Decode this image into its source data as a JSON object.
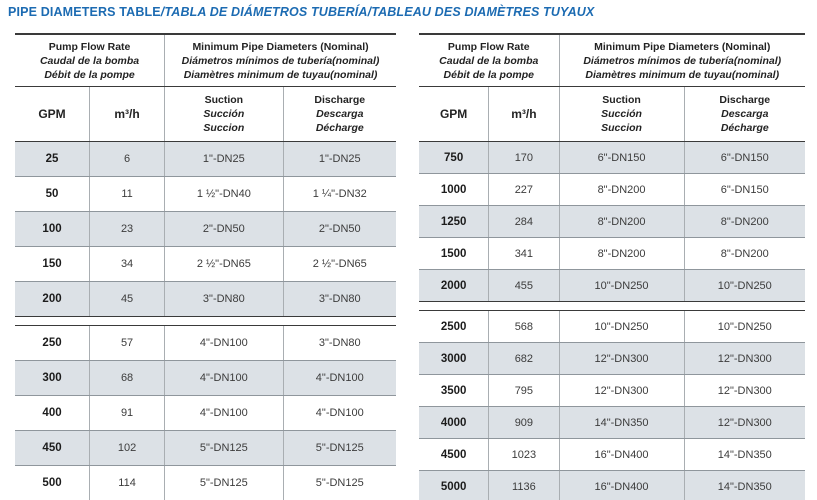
{
  "title": {
    "main": "PIPE DIAMETERS TABLE",
    "translations": "/TABLA DE DIÁMETROS TUBERÍA/TABLEAU DES DIAMÈTRES TUYAUX"
  },
  "colors": {
    "title_blue": "#1c6bb2",
    "row_shade": "#dce1e6",
    "border_dark": "#3a3a3a",
    "border_light": "#a9aeb2",
    "text_dark": "#232323"
  },
  "header": {
    "flow": [
      "Pump Flow Rate",
      "Caudal de la bomba",
      "Débit de la pompe"
    ],
    "diameters": [
      "Minimum Pipe Diameters (Nominal)",
      "Diámetros mínimos de tubería(nominal)",
      "Diamètres minimum de tuyau(nominal)"
    ],
    "gpm": "GPM",
    "m3h": "m³/h",
    "suction": [
      "Suction",
      "Succión",
      "Succion"
    ],
    "discharge": [
      "Discharge",
      "Descarga",
      "Décharge"
    ]
  },
  "tables": [
    {
      "id": "low-flow",
      "sections": [
        {
          "rows": [
            {
              "gpm": "25",
              "m3h": "6",
              "suction": "1\"-DN25",
              "discharge": "1\"-DN25",
              "shaded": true
            },
            {
              "gpm": "50",
              "m3h": "11",
              "suction": "1 ½\"-DN40",
              "discharge": "1 ¼\"-DN32",
              "shaded": false
            },
            {
              "gpm": "100",
              "m3h": "23",
              "suction": "2\"-DN50",
              "discharge": "2\"-DN50",
              "shaded": true
            },
            {
              "gpm": "150",
              "m3h": "34",
              "suction": "2 ½\"-DN65",
              "discharge": "2 ½\"-DN65",
              "shaded": false
            },
            {
              "gpm": "200",
              "m3h": "45",
              "suction": "3\"-DN80",
              "discharge": "3\"-DN80",
              "shaded": true
            }
          ]
        },
        {
          "rows": [
            {
              "gpm": "250",
              "m3h": "57",
              "suction": "4\"-DN100",
              "discharge": "3\"-DN80",
              "shaded": false
            },
            {
              "gpm": "300",
              "m3h": "68",
              "suction": "4\"-DN100",
              "discharge": "4\"-DN100",
              "shaded": true
            },
            {
              "gpm": "400",
              "m3h": "91",
              "suction": "4\"-DN100",
              "discharge": "4\"-DN100",
              "shaded": false
            },
            {
              "gpm": "450",
              "m3h": "102",
              "suction": "5\"-DN125",
              "discharge": "5\"-DN125",
              "shaded": true
            },
            {
              "gpm": "500",
              "m3h": "114",
              "suction": "5\"-DN125",
              "discharge": "5\"-DN125",
              "shaded": false
            }
          ]
        }
      ]
    },
    {
      "id": "high-flow",
      "sections": [
        {
          "rows": [
            {
              "gpm": "750",
              "m3h": "170",
              "suction": "6\"-DN150",
              "discharge": "6\"-DN150",
              "shaded": true
            },
            {
              "gpm": "1000",
              "m3h": "227",
              "suction": "8\"-DN200",
              "discharge": "6\"-DN150",
              "shaded": false
            },
            {
              "gpm": "1250",
              "m3h": "284",
              "suction": "8\"-DN200",
              "discharge": "8\"-DN200",
              "shaded": true
            },
            {
              "gpm": "1500",
              "m3h": "341",
              "suction": "8\"-DN200",
              "discharge": "8\"-DN200",
              "shaded": false
            },
            {
              "gpm": "2000",
              "m3h": "455",
              "suction": "10\"-DN250",
              "discharge": "10\"-DN250",
              "shaded": true
            }
          ]
        },
        {
          "rows": [
            {
              "gpm": "2500",
              "m3h": "568",
              "suction": "10\"-DN250",
              "discharge": "10\"-DN250",
              "shaded": false
            },
            {
              "gpm": "3000",
              "m3h": "682",
              "suction": "12\"-DN300",
              "discharge": "12\"-DN300",
              "shaded": true
            },
            {
              "gpm": "3500",
              "m3h": "795",
              "suction": "12\"-DN300",
              "discharge": "12\"-DN300",
              "shaded": false
            },
            {
              "gpm": "4000",
              "m3h": "909",
              "suction": "14\"-DN350",
              "discharge": "12\"-DN300",
              "shaded": true
            },
            {
              "gpm": "4500",
              "m3h": "1023",
              "suction": "16\"-DN400",
              "discharge": "14\"-DN350",
              "shaded": false
            },
            {
              "gpm": "5000",
              "m3h": "1136",
              "suction": "16\"-DN400",
              "discharge": "14\"-DN350",
              "shaded": true
            }
          ]
        }
      ]
    }
  ]
}
